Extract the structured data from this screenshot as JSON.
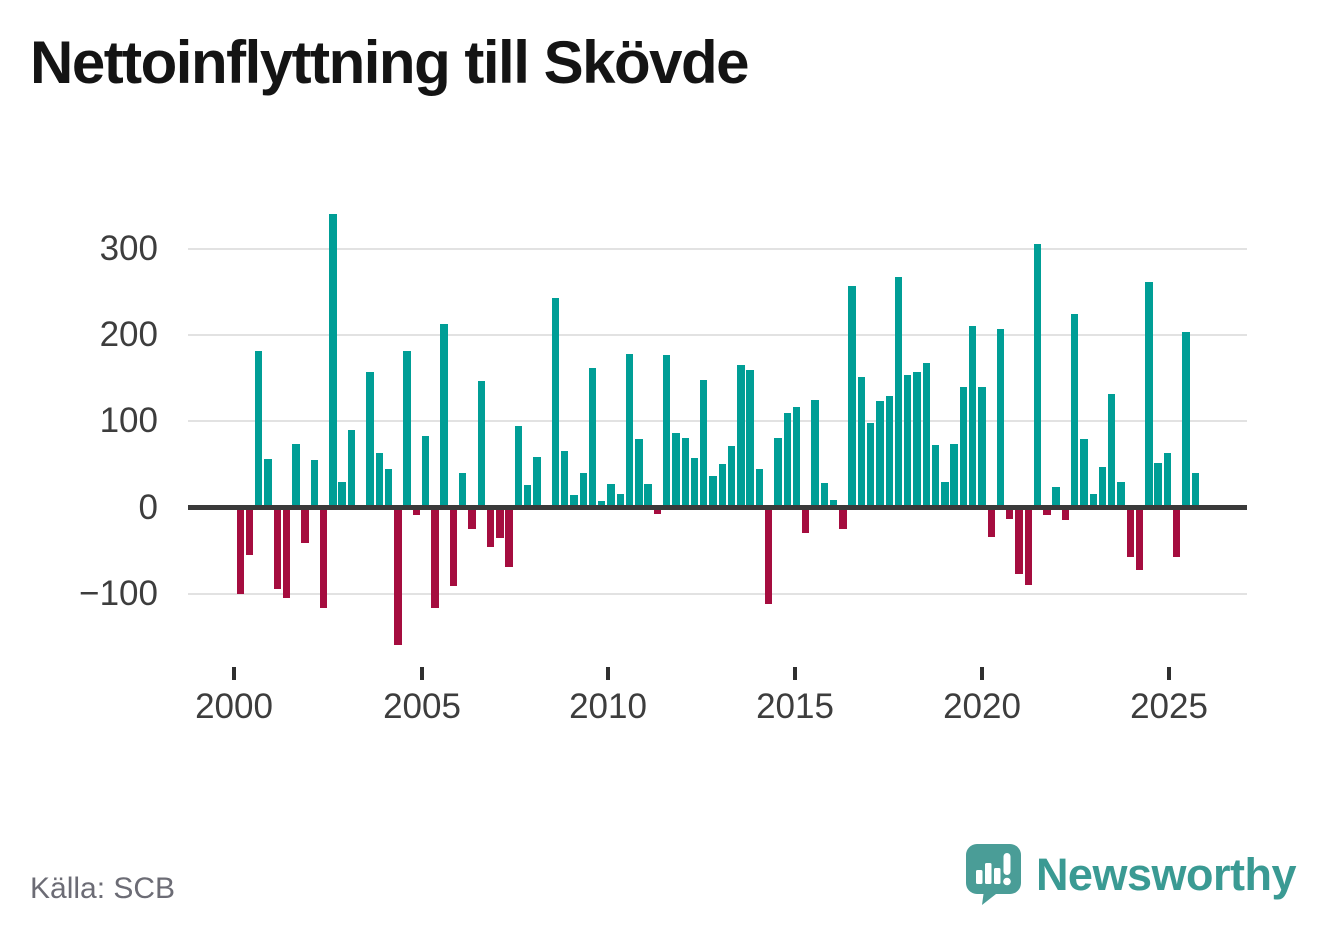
{
  "title": "Nettoinflyttning till Skövde",
  "source": "Källa: SCB",
  "branding": {
    "logo_text": "Newsworthy",
    "logo_icon": "speech-bubble-bar-chart"
  },
  "colors": {
    "positive": "#009e96",
    "negative": "#a50d3f",
    "grid": "#e2e2e2",
    "axis": "#3a3a3a",
    "tick_text": "#3d3d3d",
    "muted_text": "#6c6c75",
    "brand": "#3a9a93",
    "title_text": "#141414"
  },
  "chart_data": {
    "type": "bar",
    "title": "Nettoinflyttning till Skövde",
    "frequency": "quarterly",
    "start": "2000-Q1",
    "end": "2025-Q4",
    "grid": "horizontal",
    "legend": "none",
    "y_ticks": [
      300,
      200,
      100,
      0,
      -100
    ],
    "y_tick_labels": [
      "300",
      "200",
      "100",
      "0",
      "−100"
    ],
    "x_tick_years": [
      2000,
      2005,
      2010,
      2015,
      2020,
      2025
    ],
    "x_tick_labels": [
      "2000",
      "2005",
      "2010",
      "2015",
      "2020",
      "2025"
    ],
    "ylim": [
      -170,
      355
    ],
    "series": [
      {
        "name": "Nettoinflyttning",
        "values": [
          -100,
          -55,
          181,
          56,
          -94,
          -105,
          74,
          -41,
          55,
          -116,
          340,
          30,
          90,
          0,
          157,
          63,
          45,
          -159,
          181,
          -9,
          83,
          -116,
          213,
          -91,
          40,
          -25,
          147,
          -46,
          -35,
          -69,
          95,
          26,
          59,
          0,
          243,
          66,
          15,
          40,
          162,
          7,
          27,
          16,
          178,
          80,
          27,
          -7,
          177,
          86,
          81,
          57,
          148,
          36,
          51,
          71,
          165,
          159,
          45,
          -112,
          81,
          110,
          117,
          -30,
          125,
          28,
          9,
          -25,
          257,
          151,
          98,
          123,
          129,
          267,
          154,
          157,
          168,
          72,
          29,
          74,
          140,
          210,
          140,
          -34,
          207,
          -13,
          -77,
          -90,
          305,
          -9,
          24,
          -14,
          224,
          79,
          16,
          47,
          132,
          29,
          -57,
          -72,
          262,
          52,
          63,
          -57,
          203,
          40
        ]
      }
    ]
  }
}
